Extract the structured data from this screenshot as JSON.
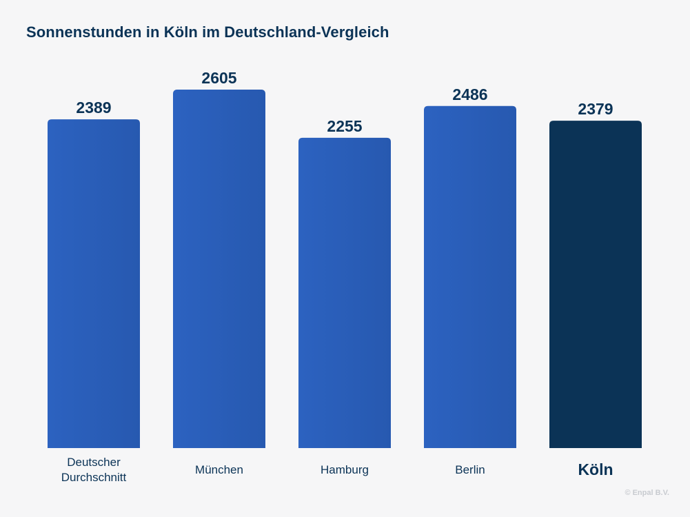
{
  "title": "Sonnenstunden in Köln im Deutschland-Vergleich",
  "copyright": "© Enpal B.V.",
  "colors": {
    "bar": "#2a5fba",
    "highlight": "#0b3356",
    "text": "#0b3356",
    "background": "#f6f6f7"
  },
  "chart_data": {
    "type": "bar",
    "title": "Sonnenstunden in Köln im Deutschland-Vergleich",
    "xlabel": "",
    "ylabel": "",
    "categories": [
      [
        "Deutscher",
        "Durchschnitt"
      ],
      [
        "München"
      ],
      [
        "Hamburg"
      ],
      [
        "Berlin"
      ],
      [
        "Köln"
      ]
    ],
    "values": [
      2389,
      2605,
      2255,
      2486,
      2379
    ],
    "highlight_index": 4,
    "ylim": [
      0,
      2605
    ],
    "grid": false,
    "legend": "none"
  }
}
